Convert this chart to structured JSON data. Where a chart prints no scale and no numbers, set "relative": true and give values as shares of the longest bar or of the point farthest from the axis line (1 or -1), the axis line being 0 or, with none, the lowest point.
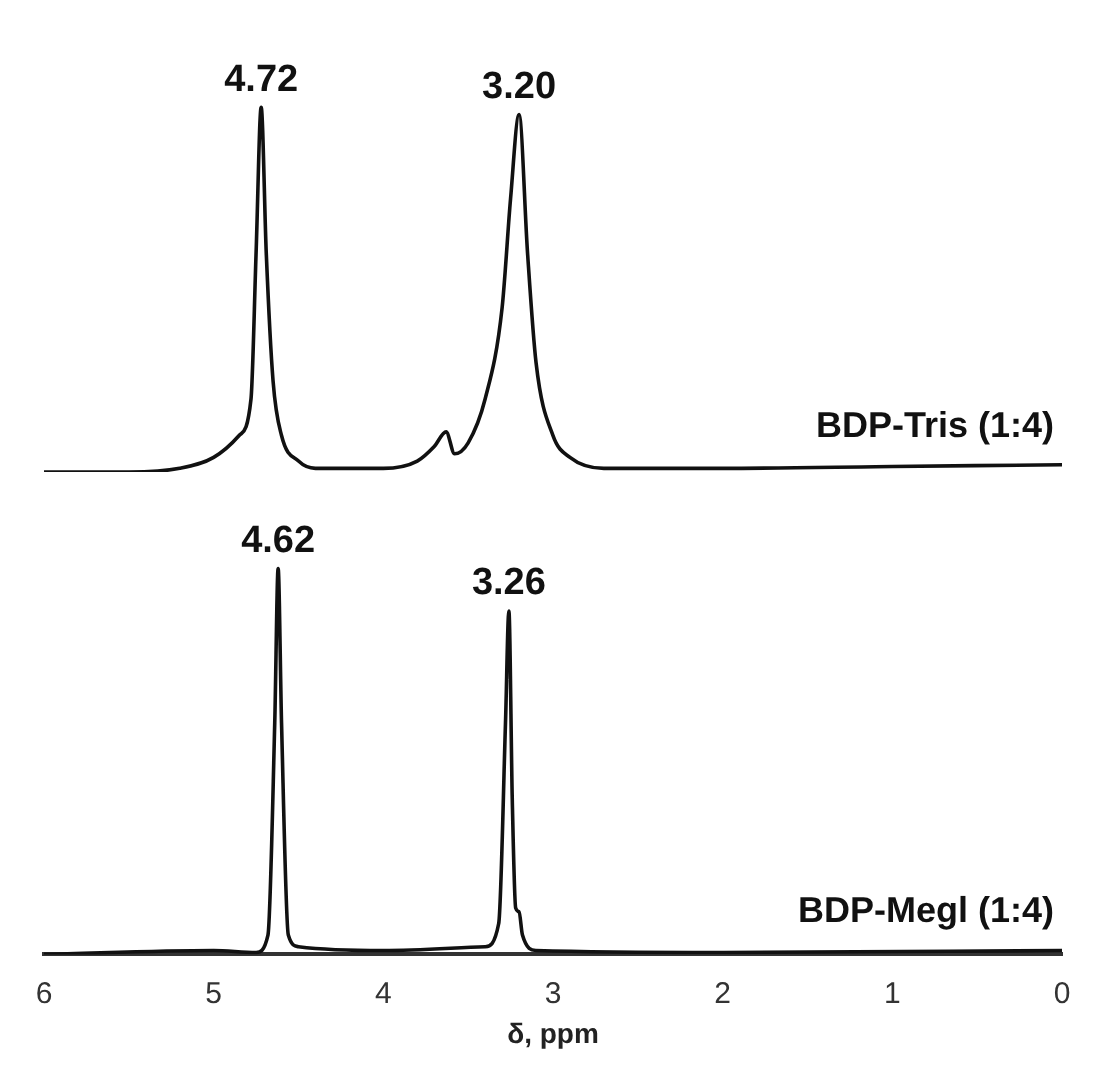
{
  "chart_data": [
    {
      "type": "line",
      "relative": true,
      "xlim": [
        6,
        0
      ],
      "tick_labels": false,
      "grid": false,
      "legend": false,
      "marker": "none",
      "annotations": [
        {
          "text": "4.72",
          "x": 4.72,
          "y": 1
        },
        {
          "text": "3.20",
          "x": 3.2,
          "y": 0.98
        }
      ],
      "series": [
        {
          "name": "BDP-Tris (1:4)",
          "color": "#111111",
          "x": [
            6,
            5.5,
            5.2,
            5,
            4.85,
            4.78,
            4.75,
            4.72,
            4.69,
            4.65,
            4.6,
            4.5,
            4.4,
            4.2,
            4,
            3.8,
            3.7,
            3.63,
            3.58,
            3.5,
            3.4,
            3.3,
            3.25,
            3.2,
            3.15,
            3.1,
            3,
            2.9,
            2.7,
            2,
            1,
            0
          ],
          "values": [
            0,
            0,
            0.01,
            0.04,
            0.1,
            0.2,
            0.6,
            1,
            0.6,
            0.25,
            0.1,
            0.03,
            0.01,
            0.01,
            0.01,
            0.03,
            0.07,
            0.11,
            0.05,
            0.08,
            0.2,
            0.45,
            0.75,
            0.98,
            0.6,
            0.3,
            0.1,
            0.04,
            0.01,
            0.01,
            0.015,
            0.02
          ]
        }
      ]
    },
    {
      "type": "line",
      "relative": true,
      "xlim": [
        6,
        0
      ],
      "xticks": [
        0,
        1,
        2,
        3,
        4,
        5,
        6
      ],
      "tick_labels": "x",
      "xlabel": "δ, ppm",
      "grid": false,
      "legend": false,
      "marker": "none",
      "annotations": [
        {
          "text": "4.62",
          "x": 4.62,
          "y": 1
        },
        {
          "text": "3.26",
          "x": 3.26,
          "y": 0.89
        }
      ],
      "series": [
        {
          "name": "BDP-Megl (1:4)",
          "color": "#111111",
          "x": [
            6,
            5,
            4.75,
            4.68,
            4.64,
            4.62,
            4.6,
            4.56,
            4.5,
            4,
            3.4,
            3.32,
            3.28,
            3.26,
            3.24,
            3.22,
            3.2,
            3.18,
            3.1,
            2,
            0
          ],
          "values": [
            0,
            0.01,
            0.005,
            0.05,
            0.6,
            1,
            0.6,
            0.05,
            0.02,
            0.01,
            0.02,
            0.08,
            0.6,
            0.89,
            0.4,
            0.12,
            0.11,
            0.05,
            0.01,
            0.005,
            0.01
          ]
        }
      ]
    }
  ]
}
